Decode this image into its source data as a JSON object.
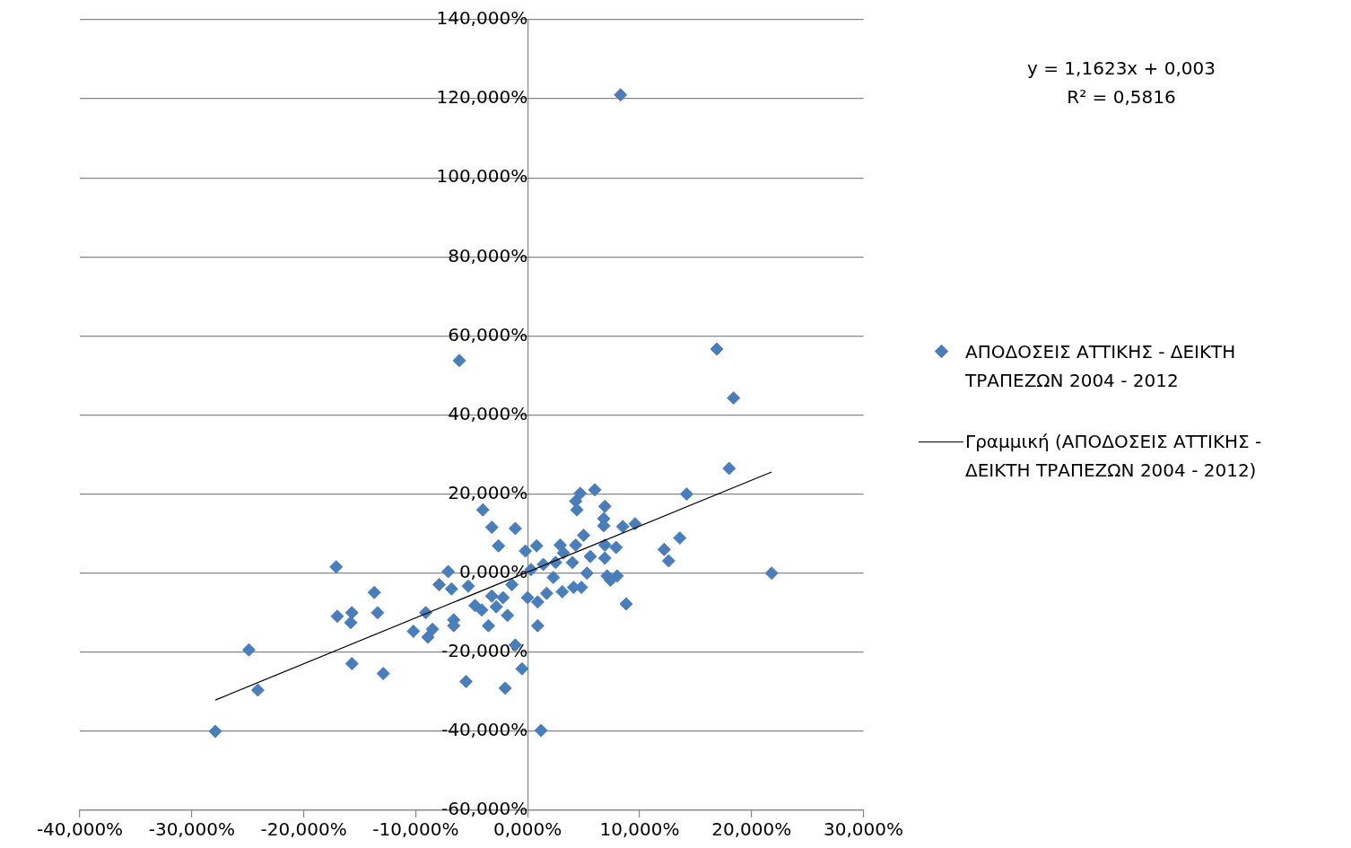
{
  "chart_data": {
    "type": "scatter",
    "xlim": [
      -40,
      30
    ],
    "ylim": [
      -60,
      140
    ],
    "xticks": [
      {
        "value": -40,
        "label": "-40,000%"
      },
      {
        "value": -30,
        "label": "-30,000%"
      },
      {
        "value": -20,
        "label": "-20,000%"
      },
      {
        "value": -10,
        "label": "-10,000%"
      },
      {
        "value": 0,
        "label": "0,000%"
      },
      {
        "value": 10,
        "label": "10,000%"
      },
      {
        "value": 20,
        "label": "20,000%"
      },
      {
        "value": 30,
        "label": "30,000%"
      }
    ],
    "yticks": [
      {
        "value": -60,
        "label": "-60,000%"
      },
      {
        "value": -40,
        "label": "-40,000%"
      },
      {
        "value": -20,
        "label": "-20,000%"
      },
      {
        "value": 0,
        "label": "0,000%"
      },
      {
        "value": 20,
        "label": "20,000%"
      },
      {
        "value": 40,
        "label": "40,000%"
      },
      {
        "value": 60,
        "label": "60,000%"
      },
      {
        "value": 80,
        "label": "80,000%"
      },
      {
        "value": 100,
        "label": "100,000%"
      },
      {
        "value": 120,
        "label": "120,000%"
      },
      {
        "value": 140,
        "label": "140,000%"
      }
    ],
    "grid": "y",
    "legend": "right",
    "marker": "diamond",
    "annotations": [
      "y = 1,1623x + 0,003",
      "R² = 0,5816"
    ],
    "series": [
      {
        "name": "ΑΠΟΔΟΣΕΙΣ ΑΤΤΙΚΗΣ - ΔΕΙΚΤΗ ΤΡΑΠΕΖΩΝ 2004 - 2012",
        "color": "#4a7ebb",
        "x": [
          8.3,
          -6.1,
          16.9,
          18.4,
          18.0,
          14.2,
          21.8,
          -17.1,
          -17.0,
          -15.7,
          -15.8,
          -13.7,
          -13.4,
          -24.9,
          -24.1,
          -27.9,
          -15.7,
          -12.9,
          -4.0,
          -3.2,
          -2.6,
          -1.1,
          -1.1,
          -0.5,
          -2.0,
          -5.5,
          1.2,
          0.9,
          -3.5,
          -7.1,
          -7.9,
          -6.8,
          -9.1,
          -10.2,
          -8.9,
          -8.5,
          -6.6,
          -6.6,
          -5.3,
          -4.7,
          -4.1,
          -3.2,
          -2.8,
          -2.2,
          -1.4,
          -0.2,
          0.8,
          0.3,
          1.4,
          2.5,
          0.0,
          0.9,
          1.7,
          2.3,
          2.9,
          3.1,
          4.1,
          4.8,
          3.2,
          4.0,
          4.3,
          5.0,
          5.6,
          5.3,
          4.4,
          4.7,
          4.3,
          6.0,
          6.9,
          6.8,
          6.8,
          6.9,
          6.9,
          7.1,
          7.4,
          7.9,
          8.0,
          8.5,
          9.6,
          8.8,
          12.2,
          12.6,
          13.6,
          -1.8
        ],
        "values": [
          121.0,
          53.8,
          56.7,
          44.3,
          26.5,
          20.0,
          0.0,
          1.6,
          -10.9,
          -10.0,
          -12.5,
          -4.9,
          -10.0,
          -19.4,
          -29.6,
          -40.0,
          -22.9,
          -25.4,
          16.0,
          11.6,
          6.9,
          11.3,
          -18.2,
          -24.2,
          -29.1,
          -27.4,
          -39.8,
          -13.3,
          -13.3,
          0.4,
          -2.9,
          -4.0,
          -10.0,
          -14.7,
          -16.2,
          -14.2,
          -11.8,
          -13.3,
          -3.3,
          -8.2,
          -9.3,
          -5.8,
          -8.5,
          -6.2,
          -2.9,
          5.6,
          6.9,
          0.9,
          2.2,
          2.7,
          -6.2,
          -7.3,
          -5.1,
          -1.1,
          7.1,
          -4.7,
          -3.6,
          -3.6,
          5.1,
          2.7,
          7.1,
          9.6,
          4.2,
          0.0,
          16.0,
          20.2,
          18.2,
          21.1,
          16.9,
          13.8,
          12.0,
          7.1,
          3.8,
          -0.7,
          -1.8,
          6.5,
          -0.7,
          11.8,
          12.5,
          -7.8,
          6.0,
          3.1,
          8.9,
          -10.7
        ]
      },
      {
        "name": "Γραμμική (ΑΠΟΔΟΣΕΙΣ ΑΤΤΙΚΗΣ - ΔΕΙΚΤΗ ΤΡΑΠΕΖΩΝ 2004 - 2012)",
        "type": "line",
        "color": "#000000",
        "line_style": "solid",
        "marker": "none",
        "x": [
          -27.9,
          21.8
        ],
        "values": [
          -32.1,
          25.6
        ]
      }
    ]
  }
}
